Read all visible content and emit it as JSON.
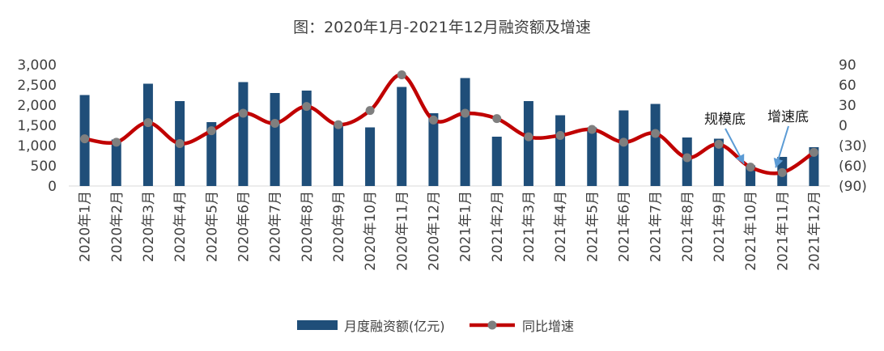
{
  "chart_data": {
    "type": "bar+line",
    "title": "图：2020年1月-2021年12月融资额及增速",
    "categories": [
      "2020年1月",
      "2020年2月",
      "2020年3月",
      "2020年4月",
      "2020年5月",
      "2020年6月",
      "2020年7月",
      "2020年8月",
      "2020年9月",
      "2020年10月",
      "2020年11月",
      "2020年12月",
      "2021年1月",
      "2021年2月",
      "2021年3月",
      "2021年4月",
      "2021年5月",
      "2021年6月",
      "2021年7月",
      "2021年8月",
      "2021年9月",
      "2021年10月",
      "2021年11月",
      "2021年12月"
    ],
    "series": [
      {
        "name": "月度融资额(亿元)",
        "type": "bar",
        "axis": "left",
        "color": "#1f4e79",
        "values": [
          2250,
          1150,
          2530,
          2100,
          1580,
          2570,
          2300,
          2360,
          1500,
          1450,
          2450,
          1800,
          2670,
          1220,
          2100,
          1750,
          1450,
          1870,
          2030,
          1200,
          1170,
          510,
          720,
          960
        ]
      },
      {
        "name": "同比增速",
        "type": "line",
        "axis": "right",
        "color": "#c00000",
        "marker_color": "#7f7f7f",
        "values": [
          -20,
          -25,
          4,
          -27,
          -8,
          18,
          3,
          28,
          1,
          22,
          75,
          8,
          18,
          10,
          -17,
          -15,
          -6,
          -25,
          -12,
          -48,
          -28,
          -62,
          -70,
          -40
        ]
      }
    ],
    "y_left": {
      "min": 0,
      "max": 3000,
      "step": 500,
      "ticks": [
        "0",
        "500",
        "1,000",
        "1,500",
        "2,000",
        "2,500",
        "3,000"
      ]
    },
    "y_right": {
      "min": -90,
      "max": 90,
      "step": 30,
      "ticks": [
        "(90)",
        "(60)",
        "(30)",
        "0",
        "30",
        "60",
        "90"
      ],
      "negative_color": "#e00000"
    },
    "annotations": [
      {
        "text": "规模底",
        "target_index": 21
      },
      {
        "text": "增速底",
        "target_index": 22
      }
    ],
    "legend": {
      "position": "bottom",
      "items": [
        "月度融资额(亿元)",
        "同比增速"
      ]
    }
  }
}
